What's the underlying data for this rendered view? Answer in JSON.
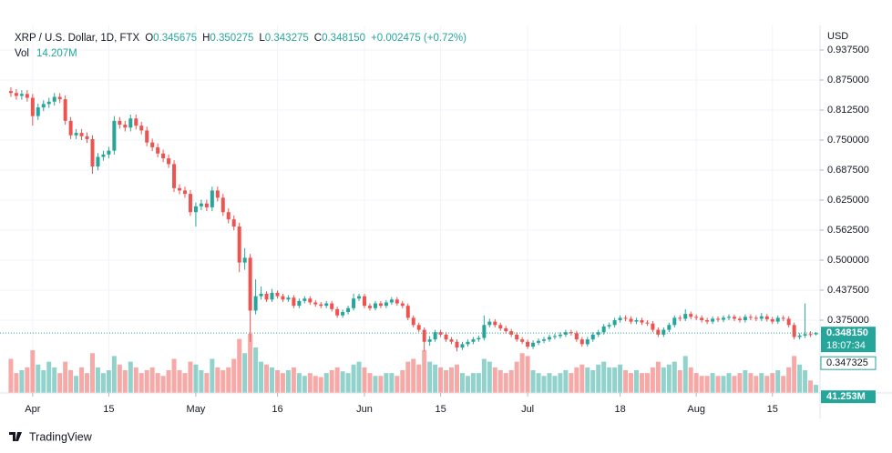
{
  "header": {
    "symbol": "XRP / U.S. Dollar, 1D, FTX",
    "open_label": "O",
    "high_label": "H",
    "low_label": "L",
    "close_label": "C",
    "change": "+0.002475 (+0.72%)",
    "volume_label": "Vol"
  },
  "chart_data": {
    "type": "candlestick",
    "currency": "USD",
    "open": [
      0.852,
      0.848,
      0.842,
      0.846,
      0.838,
      0.8,
      0.818,
      0.825,
      0.83,
      0.84,
      0.835,
      0.79,
      0.76,
      0.765,
      0.758,
      0.752,
      0.695,
      0.715,
      0.72,
      0.728,
      0.79,
      0.782,
      0.776,
      0.795,
      0.78,
      0.77,
      0.745,
      0.735,
      0.722,
      0.712,
      0.7,
      0.65,
      0.645,
      0.638,
      0.6,
      0.612,
      0.618,
      0.61,
      0.645,
      0.63,
      0.6,
      0.585,
      0.57,
      0.495,
      0.505,
      0.395,
      0.425,
      0.43,
      0.418,
      0.432,
      0.425,
      0.418,
      0.422,
      0.405,
      0.415,
      0.42,
      0.412,
      0.408,
      0.405,
      0.41,
      0.398,
      0.385,
      0.392,
      0.4,
      0.42,
      0.425,
      0.405,
      0.4,
      0.41,
      0.405,
      0.412,
      0.418,
      0.41,
      0.405,
      0.38,
      0.365,
      0.355,
      0.33,
      0.335,
      0.35,
      0.345,
      0.335,
      0.33,
      0.318,
      0.325,
      0.33,
      0.335,
      0.338,
      0.365,
      0.372,
      0.365,
      0.358,
      0.352,
      0.345,
      0.335,
      0.33,
      0.32,
      0.328,
      0.332,
      0.335,
      0.34,
      0.342,
      0.345,
      0.35,
      0.348,
      0.335,
      0.325,
      0.335,
      0.345,
      0.35,
      0.362,
      0.365,
      0.375,
      0.38,
      0.378,
      0.372,
      0.375,
      0.37,
      0.368,
      0.355,
      0.345,
      0.355,
      0.365,
      0.38,
      0.378,
      0.388,
      0.382,
      0.38,
      0.375,
      0.372,
      0.378,
      0.376,
      0.38,
      0.382,
      0.378,
      0.375,
      0.382,
      0.38,
      0.378,
      0.383,
      0.377,
      0.372,
      0.38,
      0.378,
      0.365,
      0.34,
      0.343,
      0.346,
      0.345675
    ],
    "high": [
      0.86,
      0.856,
      0.854,
      0.854,
      0.846,
      0.826,
      0.833,
      0.838,
      0.848,
      0.848,
      0.843,
      0.798,
      0.773,
      0.773,
      0.766,
      0.76,
      0.723,
      0.728,
      0.736,
      0.8,
      0.798,
      0.79,
      0.803,
      0.803,
      0.788,
      0.778,
      0.753,
      0.743,
      0.73,
      0.72,
      0.708,
      0.658,
      0.653,
      0.646,
      0.62,
      0.626,
      0.626,
      0.653,
      0.653,
      0.638,
      0.608,
      0.593,
      0.578,
      0.525,
      0.513,
      0.46,
      0.445,
      0.435,
      0.44,
      0.437,
      0.43,
      0.427,
      0.427,
      0.42,
      0.425,
      0.425,
      0.417,
      0.413,
      0.415,
      0.415,
      0.403,
      0.397,
      0.405,
      0.43,
      0.43,
      0.43,
      0.41,
      0.415,
      0.415,
      0.417,
      0.423,
      0.423,
      0.415,
      0.41,
      0.385,
      0.37,
      0.36,
      0.342,
      0.355,
      0.355,
      0.35,
      0.34,
      0.335,
      0.33,
      0.335,
      0.34,
      0.343,
      0.385,
      0.378,
      0.377,
      0.37,
      0.363,
      0.357,
      0.35,
      0.34,
      0.335,
      0.333,
      0.337,
      0.34,
      0.345,
      0.347,
      0.35,
      0.355,
      0.355,
      0.353,
      0.34,
      0.34,
      0.35,
      0.355,
      0.367,
      0.37,
      0.38,
      0.385,
      0.385,
      0.383,
      0.38,
      0.38,
      0.375,
      0.373,
      0.36,
      0.36,
      0.37,
      0.385,
      0.385,
      0.398,
      0.393,
      0.387,
      0.385,
      0.38,
      0.383,
      0.383,
      0.385,
      0.387,
      0.387,
      0.383,
      0.387,
      0.387,
      0.385,
      0.39,
      0.388,
      0.382,
      0.385,
      0.385,
      0.383,
      0.37,
      0.348,
      0.41,
      0.352,
      0.350275
    ],
    "low": [
      0.84,
      0.834,
      0.834,
      0.83,
      0.78,
      0.792,
      0.81,
      0.817,
      0.822,
      0.827,
      0.782,
      0.752,
      0.752,
      0.75,
      0.744,
      0.68,
      0.687,
      0.707,
      0.712,
      0.72,
      0.774,
      0.768,
      0.768,
      0.772,
      0.762,
      0.737,
      0.727,
      0.714,
      0.704,
      0.692,
      0.642,
      0.637,
      0.63,
      0.592,
      0.57,
      0.604,
      0.602,
      0.602,
      0.622,
      0.592,
      0.577,
      0.562,
      0.475,
      0.48,
      0.33,
      0.387,
      0.418,
      0.413,
      0.413,
      0.42,
      0.413,
      0.413,
      0.4,
      0.4,
      0.41,
      0.407,
      0.403,
      0.4,
      0.4,
      0.393,
      0.38,
      0.38,
      0.387,
      0.395,
      0.415,
      0.4,
      0.395,
      0.395,
      0.4,
      0.4,
      0.407,
      0.405,
      0.4,
      0.375,
      0.36,
      0.35,
      0.31,
      0.322,
      0.33,
      0.34,
      0.33,
      0.325,
      0.31,
      0.313,
      0.32,
      0.325,
      0.33,
      0.333,
      0.36,
      0.36,
      0.353,
      0.347,
      0.34,
      0.33,
      0.325,
      0.315,
      0.315,
      0.323,
      0.327,
      0.33,
      0.335,
      0.337,
      0.34,
      0.343,
      0.33,
      0.32,
      0.32,
      0.33,
      0.34,
      0.345,
      0.357,
      0.36,
      0.37,
      0.373,
      0.367,
      0.367,
      0.365,
      0.363,
      0.35,
      0.34,
      0.34,
      0.35,
      0.36,
      0.373,
      0.373,
      0.377,
      0.375,
      0.37,
      0.367,
      0.367,
      0.371,
      0.371,
      0.375,
      0.373,
      0.37,
      0.37,
      0.375,
      0.373,
      0.373,
      0.372,
      0.367,
      0.367,
      0.373,
      0.36,
      0.335,
      0.335,
      0.338,
      0.34,
      0.343275
    ],
    "close": [
      0.848,
      0.842,
      0.846,
      0.838,
      0.8,
      0.818,
      0.825,
      0.83,
      0.84,
      0.835,
      0.79,
      0.76,
      0.765,
      0.758,
      0.752,
      0.695,
      0.715,
      0.72,
      0.728,
      0.79,
      0.782,
      0.776,
      0.795,
      0.78,
      0.77,
      0.745,
      0.735,
      0.722,
      0.712,
      0.7,
      0.65,
      0.645,
      0.638,
      0.6,
      0.612,
      0.618,
      0.61,
      0.645,
      0.63,
      0.6,
      0.585,
      0.57,
      0.495,
      0.505,
      0.395,
      0.425,
      0.43,
      0.418,
      0.432,
      0.425,
      0.418,
      0.422,
      0.405,
      0.415,
      0.42,
      0.412,
      0.408,
      0.405,
      0.41,
      0.398,
      0.385,
      0.392,
      0.4,
      0.42,
      0.425,
      0.405,
      0.4,
      0.41,
      0.405,
      0.412,
      0.418,
      0.41,
      0.405,
      0.38,
      0.365,
      0.355,
      0.33,
      0.335,
      0.35,
      0.345,
      0.335,
      0.33,
      0.318,
      0.325,
      0.33,
      0.335,
      0.338,
      0.365,
      0.372,
      0.365,
      0.358,
      0.352,
      0.345,
      0.335,
      0.33,
      0.32,
      0.328,
      0.332,
      0.335,
      0.34,
      0.342,
      0.345,
      0.35,
      0.348,
      0.335,
      0.325,
      0.335,
      0.345,
      0.35,
      0.362,
      0.365,
      0.375,
      0.38,
      0.378,
      0.372,
      0.375,
      0.37,
      0.368,
      0.355,
      0.345,
      0.355,
      0.365,
      0.38,
      0.378,
      0.388,
      0.382,
      0.38,
      0.375,
      0.372,
      0.378,
      0.376,
      0.38,
      0.382,
      0.378,
      0.375,
      0.382,
      0.38,
      0.378,
      0.383,
      0.377,
      0.372,
      0.38,
      0.378,
      0.365,
      0.34,
      0.343,
      0.346,
      0.345675,
      0.34815
    ],
    "last_label": "0.348150",
    "volumes": [
      60,
      35,
      40,
      45,
      75,
      50,
      40,
      55,
      45,
      35,
      55,
      40,
      30,
      45,
      35,
      70,
      45,
      35,
      40,
      65,
      50,
      40,
      55,
      45,
      35,
      40,
      45,
      35,
      30,
      40,
      60,
      40,
      35,
      55,
      50,
      40,
      35,
      60,
      45,
      40,
      45,
      60,
      95,
      70,
      104,
      80,
      55,
      50,
      45,
      40,
      35,
      40,
      45,
      35,
      30,
      35,
      30,
      28,
      35,
      40,
      45,
      38,
      35,
      50,
      55,
      45,
      35,
      30,
      30,
      35,
      35,
      30,
      40,
      55,
      60,
      50,
      75,
      55,
      50,
      45,
      40,
      45,
      50,
      35,
      30,
      35,
      35,
      60,
      55,
      45,
      40,
      35,
      40,
      55,
      70,
      65,
      40,
      35,
      30,
      35,
      30,
      35,
      40,
      35,
      45,
      50,
      45,
      40,
      50,
      55,
      45,
      45,
      50,
      40,
      35,
      40,
      35,
      35,
      45,
      55,
      45,
      50,
      55,
      40,
      65,
      45,
      35,
      30,
      30,
      35,
      30,
      30,
      35,
      30,
      35,
      40,
      35,
      30,
      35,
      30,
      35,
      40,
      30,
      45,
      65,
      50,
      40,
      22,
      14.207
    ],
    "volume_value_label": "14.207M",
    "colors": {
      "up": "#26a69a",
      "down": "#ef5350"
    },
    "xlim": [
      -2,
      148.75
    ],
    "xticks": [
      {
        "value": 4,
        "label": "Apr"
      },
      {
        "value": 18,
        "label": "15"
      },
      {
        "value": 34,
        "label": "May"
      },
      {
        "value": 49,
        "label": "16"
      },
      {
        "value": 65,
        "label": "Jun"
      },
      {
        "value": 79,
        "label": "15"
      },
      {
        "value": 95,
        "label": "Jul"
      },
      {
        "value": 112,
        "label": "18"
      },
      {
        "value": 126,
        "label": "Aug"
      },
      {
        "value": 140,
        "label": "15"
      }
    ],
    "ylim": [
      0.2235,
      0.9886
    ],
    "yticks": [
      {
        "value": 0.9375,
        "label": "0.937500"
      },
      {
        "value": 0.875,
        "label": "0.875000"
      },
      {
        "value": 0.8125,
        "label": "0.812500"
      },
      {
        "value": 0.75,
        "label": "0.750000"
      },
      {
        "value": 0.6875,
        "label": "0.687500"
      },
      {
        "value": 0.625,
        "label": "0.625000"
      },
      {
        "value": 0.5625,
        "label": "0.562500"
      },
      {
        "value": 0.5,
        "label": "0.500000"
      },
      {
        "value": 0.4375,
        "label": "0.437500"
      },
      {
        "value": 0.375,
        "label": "0.375000"
      }
    ],
    "vlim": [
      0,
      160
    ],
    "grid": true,
    "countdown": "18:07:34",
    "price_line": 0.347325,
    "volume_tag": {
      "value": 41.253,
      "label": "41.253M"
    }
  },
  "branding": "TradingView"
}
